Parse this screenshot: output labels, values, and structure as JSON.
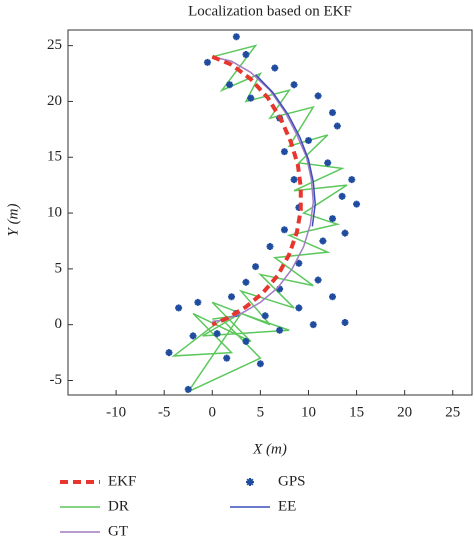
{
  "chart_data": {
    "type": "line",
    "title": "Localization based on EKF",
    "x_label": "X (m)",
    "y_label": "Y (m)",
    "xlim": [
      -15,
      27
    ],
    "ylim": [
      -6.3,
      26.4
    ],
    "xticks": [
      -10,
      -5,
      0,
      5,
      10,
      15,
      20,
      25
    ],
    "yticks": [
      -5,
      0,
      5,
      10,
      15,
      20,
      25
    ],
    "series": [
      {
        "name": "EKF",
        "color": "#e8362e",
        "style": "dashed",
        "x": [
          0,
          2,
          4,
          5.8,
          7.2,
          8.2,
          8.9,
          9.2,
          9.2,
          8.8,
          8,
          6.8,
          5.2,
          3.5,
          1.6,
          0
        ],
        "values": [
          24,
          23.3,
          22,
          20.3,
          18.3,
          16.3,
          14.3,
          12.3,
          10.3,
          8.3,
          6.3,
          4.4,
          2.8,
          1.6,
          0.6,
          0
        ]
      },
      {
        "name": "DR",
        "color": "#5cc85c",
        "style": "solid",
        "x": [
          0,
          4.5,
          1,
          5,
          3.5,
          8,
          6,
          10.5,
          8,
          12,
          9,
          13.5,
          8.5,
          14,
          9.5,
          13,
          8,
          12,
          6.5,
          10.5,
          5,
          8.5,
          3,
          6,
          0,
          4,
          -2,
          2,
          -4,
          1,
          5,
          -2.5,
          3,
          8,
          -1,
          2.5,
          0
        ],
        "values": [
          24,
          25,
          21,
          22.5,
          20,
          21,
          18.5,
          19.5,
          16,
          17,
          14.5,
          14,
          12,
          12.5,
          10,
          9,
          8,
          6.5,
          6,
          3.5,
          4.5,
          1.5,
          3,
          0,
          2,
          -1.5,
          1,
          -2.5,
          -2.8,
          0.5,
          -3,
          -6,
          1,
          -0.5,
          -1,
          0.8,
          0.5
        ]
      },
      {
        "name": "GT",
        "color": "#a27cc4",
        "style": "solid",
        "x": [
          0,
          2,
          4,
          6,
          7.6,
          8.8,
          9.8,
          10.3,
          10.5,
          10.2,
          9.5,
          8.3,
          6.8,
          5,
          3,
          1,
          0
        ],
        "values": [
          24,
          23.6,
          22.6,
          21,
          19,
          17,
          15,
          13,
          11,
          9,
          7,
          5,
          3.3,
          2,
          1,
          0.4,
          0.3
        ]
      },
      {
        "name": "GPS",
        "color": "#1f4c9e",
        "style": "marker",
        "x": [
          2.5,
          -0.5,
          1.8,
          4,
          3.5,
          6.5,
          8.5,
          11,
          7,
          12.5,
          10,
          13,
          7.5,
          12,
          14.5,
          8.5,
          13.5,
          9,
          12.5,
          15,
          7.5,
          11.5,
          6,
          13.8,
          9,
          4.5,
          11,
          7,
          3.5,
          12.5,
          9,
          5.5,
          2,
          -1.5,
          -3.5,
          0.5,
          3.5,
          7,
          10.5,
          -2,
          -4.5,
          1.5,
          5,
          -2.5,
          13.8,
          2.5
        ],
        "values": [
          25.8,
          23.5,
          21.5,
          20.3,
          24.2,
          23,
          21.5,
          20.5,
          18.5,
          19,
          16.5,
          17.8,
          15.5,
          14.5,
          13,
          13,
          11.5,
          10.5,
          9.5,
          10.8,
          8.5,
          7.5,
          7,
          8.2,
          5.5,
          5.2,
          4,
          3.2,
          3.8,
          2.5,
          1.5,
          0.8,
          2.5,
          2,
          1.5,
          -0.8,
          -1.5,
          -0.5,
          0,
          -1,
          -2.5,
          -3,
          -3.5,
          -5.8,
          0.2,
          1
        ]
      },
      {
        "name": "EE",
        "color": "#3a4fb8",
        "style": "solid",
        "x": [
          4.5,
          6.3,
          7.9,
          9.1,
          10,
          10.5,
          10.7,
          10.4
        ],
        "values": [
          22.4,
          20.8,
          18.8,
          16.8,
          14.8,
          12.8,
          10.8,
          8.8
        ]
      }
    ]
  }
}
